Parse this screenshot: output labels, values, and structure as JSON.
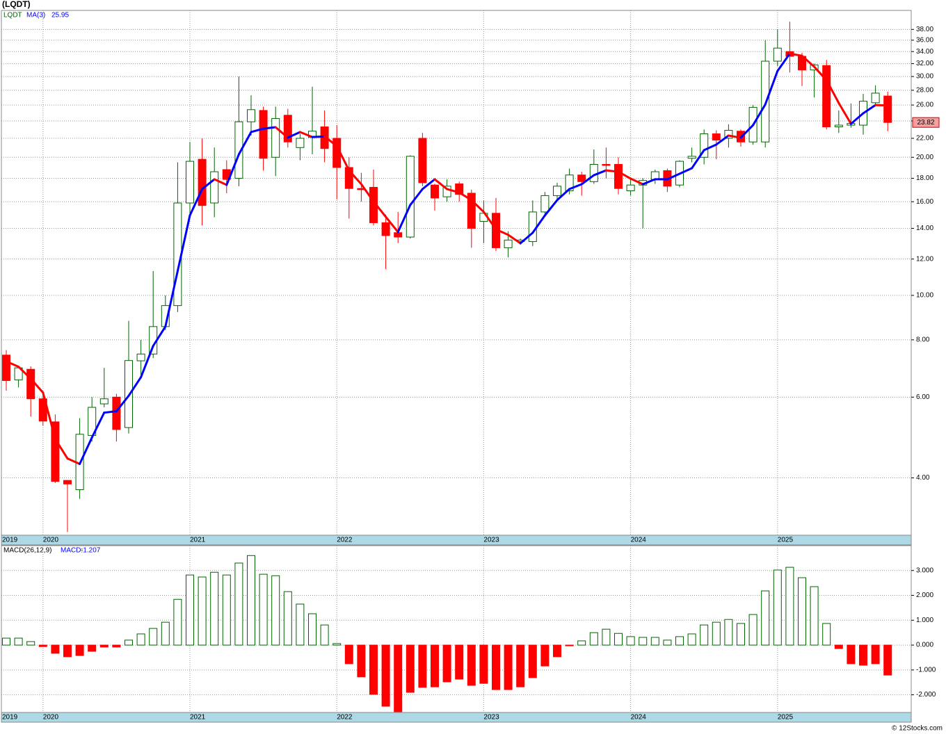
{
  "chart_data": [
    {
      "type": "candlestick",
      "title": "(LQDT)",
      "name": "LQDT",
      "log_scale": true,
      "grid": true,
      "up_color": "#006400",
      "down_color": "#ff0000",
      "categories": [
        "2019",
        null,
        null,
        "2020",
        null,
        null,
        null,
        null,
        null,
        null,
        null,
        null,
        null,
        null,
        null,
        "2021",
        null,
        null,
        null,
        null,
        null,
        null,
        null,
        null,
        null,
        null,
        null,
        "2022",
        null,
        null,
        null,
        null,
        null,
        null,
        null,
        null,
        null,
        null,
        null,
        "2023",
        null,
        null,
        null,
        null,
        null,
        null,
        null,
        null,
        null,
        null,
        null,
        "2024",
        null,
        null,
        null,
        null,
        null,
        null,
        null,
        null,
        null,
        null,
        null,
        "2025",
        null,
        null,
        null,
        null,
        null,
        null,
        null,
        null,
        null
      ],
      "open": [
        7.41,
        6.54,
        6.9,
        5.95,
        5.3,
        3.95,
        3.77,
        4.95,
        5.8,
        6.0,
        5.15,
        7.2,
        7.45,
        8.55,
        9.5,
        15.9,
        19.8,
        15.9,
        18.8,
        18.0,
        23.9,
        25.3,
        20.0,
        24.7,
        21.0,
        22.1,
        23.3,
        22.0,
        19.0,
        17.1,
        17.2,
        14.4,
        13.7,
        13.4,
        22.0,
        17.4,
        16.4,
        17.5,
        16.7,
        14.5,
        15.1,
        12.7,
        13.1,
        13.1,
        15.2,
        16.5,
        16.9,
        18.3,
        17.7,
        19.3,
        19.3,
        16.9,
        17.4,
        17.9,
        18.7,
        17.4,
        19.9,
        20.0,
        22.5,
        22.0,
        22.8,
        21.6,
        21.6,
        32.4,
        34.0,
        33.2,
        31.0,
        31.7,
        23.3,
        23.5,
        23.5,
        26.3,
        27.2
      ],
      "high": [
        7.6,
        7.0,
        7.0,
        6.1,
        5.5,
        3.95,
        5.4,
        6.0,
        6.95,
        6.1,
        8.8,
        8.0,
        11.3,
        10.0,
        19.5,
        21.6,
        22.0,
        21.0,
        19.7,
        30.0,
        27.3,
        25.8,
        25.8,
        25.5,
        22.5,
        28.5,
        25.3,
        23.5,
        20.0,
        18.5,
        18.8,
        15.0,
        15.2,
        20.2,
        22.6,
        17.5,
        17.9,
        17.7,
        17.0,
        16.1,
        16.3,
        13.8,
        13.3,
        16.1,
        16.8,
        17.6,
        18.9,
        18.6,
        20.8,
        21.0,
        20.0,
        17.9,
        18.0,
        18.8,
        18.9,
        19.7,
        21.0,
        23.0,
        22.9,
        23.6,
        23.0,
        26.0,
        36.0,
        38.0,
        39.5,
        33.8,
        32.0,
        32.6,
        25.3,
        26.2,
        27.5,
        28.7,
        27.8
      ],
      "low": [
        6.2,
        6.3,
        5.44,
        5.2,
        3.9,
        3.05,
        3.6,
        4.8,
        5.7,
        4.8,
        5.0,
        6.6,
        7.3,
        8.4,
        9.2,
        14.8,
        14.2,
        14.8,
        16.7,
        17.3,
        22.3,
        18.7,
        18.2,
        21.0,
        19.7,
        20.3,
        19.5,
        16.2,
        14.7,
        16.0,
        14.2,
        11.4,
        13.0,
        13.3,
        17.3,
        15.3,
        16.0,
        16.0,
        12.7,
        13.0,
        12.5,
        12.1,
        12.9,
        12.8,
        15.0,
        16.2,
        16.6,
        16.5,
        17.5,
        18.0,
        16.6,
        16.5,
        14.0,
        17.5,
        16.8,
        17.2,
        19.5,
        19.3,
        19.8,
        21.0,
        21.1,
        21.3,
        21.0,
        31.6,
        30.6,
        28.6,
        27.0,
        23.0,
        22.6,
        23.2,
        22.4,
        25.8,
        22.8
      ],
      "close": [
        6.52,
        6.95,
        5.95,
        5.32,
        3.93,
        3.88,
        4.98,
        5.7,
        5.95,
        5.1,
        7.21,
        7.45,
        8.55,
        9.5,
        15.9,
        19.6,
        15.7,
        18.6,
        17.9,
        23.9,
        25.4,
        19.9,
        24.3,
        21.6,
        22.0,
        22.8,
        20.9,
        19.0,
        17.1,
        17.0,
        14.4,
        13.5,
        13.4,
        20.1,
        17.6,
        16.3,
        17.3,
        16.6,
        14.0,
        15.1,
        12.7,
        13.2,
        13.2,
        15.2,
        16.5,
        17.3,
        18.3,
        17.7,
        19.3,
        19.2,
        17.1,
        17.4,
        17.8,
        18.6,
        17.3,
        19.6,
        20.1,
        22.5,
        21.8,
        22.9,
        21.6,
        25.7,
        32.4,
        34.6,
        33.2,
        31.0,
        31.8,
        23.3,
        23.5,
        23.7,
        26.5,
        27.6,
        23.82
      ],
      "ma": {
        "name": "MA(3)",
        "up_color": "#0000ff",
        "down_color": "#ff0000",
        "values": [
          7.18,
          6.99,
          6.58,
          6.14,
          4.86,
          4.41,
          4.29,
          4.9,
          5.55,
          5.59,
          6.04,
          6.63,
          7.76,
          8.55,
          11.3,
          14.94,
          17.05,
          17.91,
          17.41,
          20.3,
          22.7,
          23.09,
          23.26,
          22.07,
          22.7,
          22.14,
          22.2,
          21.16,
          18.73,
          17.47,
          16.02,
          14.83,
          13.74,
          15.74,
          17.05,
          17.91,
          17.05,
          16.76,
          16.13,
          15.2,
          13.93,
          13.55,
          12.99,
          13.69,
          14.94,
          16.13,
          17.05,
          17.47,
          18.28,
          18.73,
          18.6,
          17.97,
          17.47,
          17.91,
          17.91,
          18.41,
          18.93,
          20.73,
          21.32,
          22.3,
          22.07,
          23.5,
          26.08,
          30.84,
          33.65,
          33.29,
          31.49,
          29.47,
          26.27,
          23.66,
          24.94,
          26.0,
          25.95
        ]
      },
      "ylim": [
        3.0,
        41.8
      ],
      "yticks": [
        {
          "value": 4,
          "label": "4.00"
        },
        {
          "value": 6,
          "label": "6.00"
        },
        {
          "value": 8,
          "label": "8.00"
        },
        {
          "value": 10,
          "label": "10.00"
        },
        {
          "value": 12,
          "label": "12.00"
        },
        {
          "value": 14,
          "label": "14.00"
        },
        {
          "value": 16,
          "label": "16.00"
        },
        {
          "value": 18,
          "label": "18.00"
        },
        {
          "value": 20,
          "label": "20.00"
        },
        {
          "value": 22,
          "label": "22.00"
        },
        {
          "value": 24,
          "label": "24.00"
        },
        {
          "value": 26,
          "label": "26.00"
        },
        {
          "value": 28,
          "label": "28.00"
        },
        {
          "value": 30,
          "label": "30.00"
        },
        {
          "value": 32,
          "label": "32.00"
        },
        {
          "value": 34,
          "label": "34.00"
        },
        {
          "value": 36,
          "label": "36.00"
        },
        {
          "value": 38,
          "label": "38.00"
        }
      ]
    },
    {
      "type": "bar",
      "title": "MACD(26,12,9)",
      "legend_label": "MACD:",
      "grid": true,
      "up_color": "#006400",
      "down_color": "#ff0000",
      "categories": [
        "2019",
        null,
        null,
        "2020",
        null,
        null,
        null,
        null,
        null,
        null,
        null,
        null,
        null,
        null,
        null,
        "2021",
        null,
        null,
        null,
        null,
        null,
        null,
        null,
        null,
        null,
        null,
        null,
        "2022",
        null,
        null,
        null,
        null,
        null,
        null,
        null,
        null,
        null,
        null,
        null,
        "2023",
        null,
        null,
        null,
        null,
        null,
        null,
        null,
        null,
        null,
        null,
        null,
        "2024",
        null,
        null,
        null,
        null,
        null,
        null,
        null,
        null,
        null,
        null,
        null,
        "2025",
        null,
        null,
        null,
        null,
        null,
        null,
        null,
        null,
        null
      ],
      "values": [
        0.28,
        0.28,
        0.14,
        -0.06,
        -0.33,
        -0.47,
        -0.42,
        -0.25,
        -0.08,
        -0.08,
        0.2,
        0.45,
        0.67,
        0.92,
        1.84,
        2.82,
        2.74,
        2.93,
        2.82,
        3.3,
        3.6,
        2.85,
        2.79,
        2.15,
        1.65,
        1.26,
        0.81,
        0.06,
        -0.75,
        -1.28,
        -1.98,
        -2.46,
        -2.68,
        -1.9,
        -1.7,
        -1.68,
        -1.48,
        -1.37,
        -1.62,
        -1.54,
        -1.79,
        -1.79,
        -1.68,
        -1.31,
        -0.84,
        -0.47,
        -0.03,
        0.17,
        0.5,
        0.64,
        0.47,
        0.34,
        0.31,
        0.31,
        0.2,
        0.34,
        0.45,
        0.81,
        0.92,
        1.03,
        0.87,
        1.23,
        2.18,
        3.02,
        3.13,
        2.71,
        2.35,
        0.87,
        -0.14,
        -0.75,
        -0.81,
        -0.75,
        -1.207
      ],
      "ylim": [
        -2.71,
        4.0
      ],
      "yticks": [
        {
          "value": -2,
          "label": "-2.000"
        },
        {
          "value": -1,
          "label": "-1.000"
        },
        {
          "value": 0,
          "label": "0.000"
        },
        {
          "value": 1,
          "label": "1.000"
        },
        {
          "value": 2,
          "label": "2.000"
        },
        {
          "value": 3,
          "label": "3.000"
        }
      ]
    }
  ],
  "footer": "© 12Stocks.com"
}
